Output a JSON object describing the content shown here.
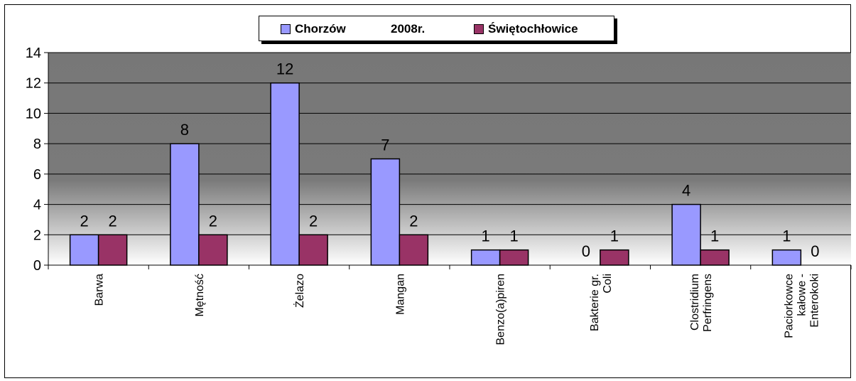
{
  "chart_data": {
    "type": "bar",
    "title": "2008r.",
    "categories": [
      [
        "Barwa"
      ],
      [
        "Mętność"
      ],
      [
        "Żelazo"
      ],
      [
        "Mangan"
      ],
      [
        "Benzo(a)piren"
      ],
      [
        "Bakterie gr.",
        "Coli"
      ],
      [
        "Clostridium",
        "Perfringens"
      ],
      [
        "Paciorkowce",
        "kałowe -",
        "Enterokoki"
      ]
    ],
    "series": [
      {
        "name": "Chorzów",
        "color": "#9999ff",
        "values": [
          2,
          8,
          12,
          7,
          1,
          0,
          4,
          1
        ]
      },
      {
        "name": "Świętochłowice",
        "color": "#993366",
        "values": [
          2,
          2,
          2,
          2,
          1,
          1,
          1,
          0
        ]
      }
    ],
    "ylim": [
      0,
      14
    ],
    "yticks": [
      "0",
      "2",
      "4",
      "6",
      "8",
      "10",
      "12",
      "14"
    ],
    "legend_position": "top",
    "grid": true,
    "plot_background": "gradient gray to white"
  }
}
